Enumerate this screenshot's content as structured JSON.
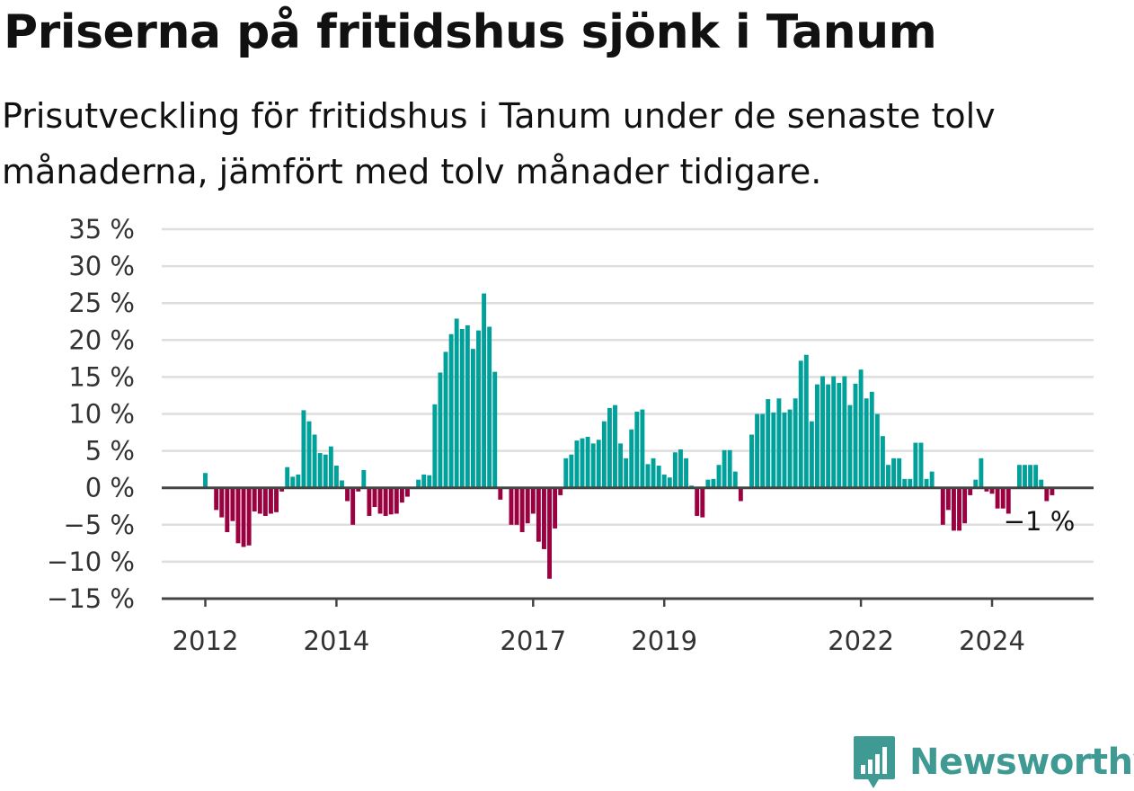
{
  "header": {
    "title": "Priserna på fritidshus sjönk i Tanum",
    "subtitle": "Prisutveckling för fritidshus i Tanum under de senaste tolv månaderna, jämfört med tolv månader tidigare."
  },
  "brand": {
    "name": "Newsworthy",
    "icon": "newsworthy-logo-icon",
    "color": "#3f9a93"
  },
  "chart_data": {
    "type": "bar",
    "title": "Priserna på fritidshus sjönk i Tanum",
    "subtitle": "Prisutveckling för fritidshus i Tanum under de senaste tolv månaderna, jämfört med tolv månader tidigare.",
    "x_unit": "month",
    "x_start": "2012-01",
    "unit": "%",
    "ylim": [
      -15,
      35
    ],
    "yticks": [
      35,
      30,
      25,
      20,
      15,
      10,
      5,
      0,
      -5,
      -10,
      -15
    ],
    "ytick_labels": [
      "35 %",
      "30 %",
      "25 %",
      "20 %",
      "15 %",
      "10 %",
      "5 %",
      "0 %",
      "−5 %",
      "−10 %",
      "−15 %"
    ],
    "xticks": [
      {
        "label": "2012",
        "date": "2012-01"
      },
      {
        "label": "2014",
        "date": "2014-01"
      },
      {
        "label": "2017",
        "date": "2017-01"
      },
      {
        "label": "2019",
        "date": "2019-01"
      },
      {
        "label": "2022",
        "date": "2022-01"
      },
      {
        "label": "2024",
        "date": "2024-01"
      }
    ],
    "grid": true,
    "positive_color": "#00a19a",
    "negative_color": "#9b0040",
    "annotation": {
      "text": "−1 %",
      "date": "2024-10",
      "value": -1
    },
    "values": [
      2,
      0,
      -3,
      -4,
      -6,
      -4.5,
      -7.5,
      -8,
      -7.8,
      -3.2,
      -3.5,
      -3.8,
      -3.5,
      -3.3,
      -0.5,
      2.8,
      1.5,
      1.8,
      10.5,
      9,
      7.2,
      4.7,
      4.5,
      5.6,
      3,
      1,
      -1.8,
      -5,
      -0.5,
      2.4,
      -3.8,
      -2.6,
      -3.5,
      -3.8,
      -3.6,
      -3.5,
      -2,
      -1.2,
      0,
      1.1,
      1.8,
      1.7,
      11.3,
      15.6,
      18.4,
      20.8,
      22.9,
      21.5,
      22,
      18.8,
      21.3,
      26.3,
      21.8,
      15.7,
      -1.6,
      0,
      -5,
      -5,
      -6,
      -4.8,
      -3.5,
      -7.3,
      -8.3,
      -12.3,
      -5.5,
      -1,
      4,
      4.5,
      6.4,
      6.7,
      6.9,
      6,
      6.5,
      9,
      10.8,
      11.2,
      6,
      4,
      7.9,
      10.3,
      10.6,
      3.2,
      4,
      3,
      1.8,
      1.4,
      4.8,
      5.2,
      4,
      0.3,
      -3.8,
      -4,
      1.1,
      1.2,
      3.1,
      5.1,
      5.1,
      2.2,
      -1.8,
      0,
      7.2,
      10,
      10,
      12,
      10.2,
      12.1,
      10.2,
      10.6,
      12.1,
      17.2,
      18,
      9,
      14,
      15.1,
      14,
      15.1,
      14.2,
      15.1,
      11.2,
      14.1,
      16,
      12.1,
      13,
      10,
      7,
      3.1,
      4,
      4,
      1.2,
      1.2,
      6.1,
      6.1,
      1.2,
      2.2,
      0,
      -5,
      -3,
      -5.8,
      -5.8,
      -4.8,
      -1,
      1.1,
      4,
      -0.5,
      -0.8,
      -2.8,
      -2.8,
      -3.5,
      0,
      3.1,
      3.1,
      3.1,
      3.1,
      1.1,
      -1.8,
      -1
    ]
  }
}
